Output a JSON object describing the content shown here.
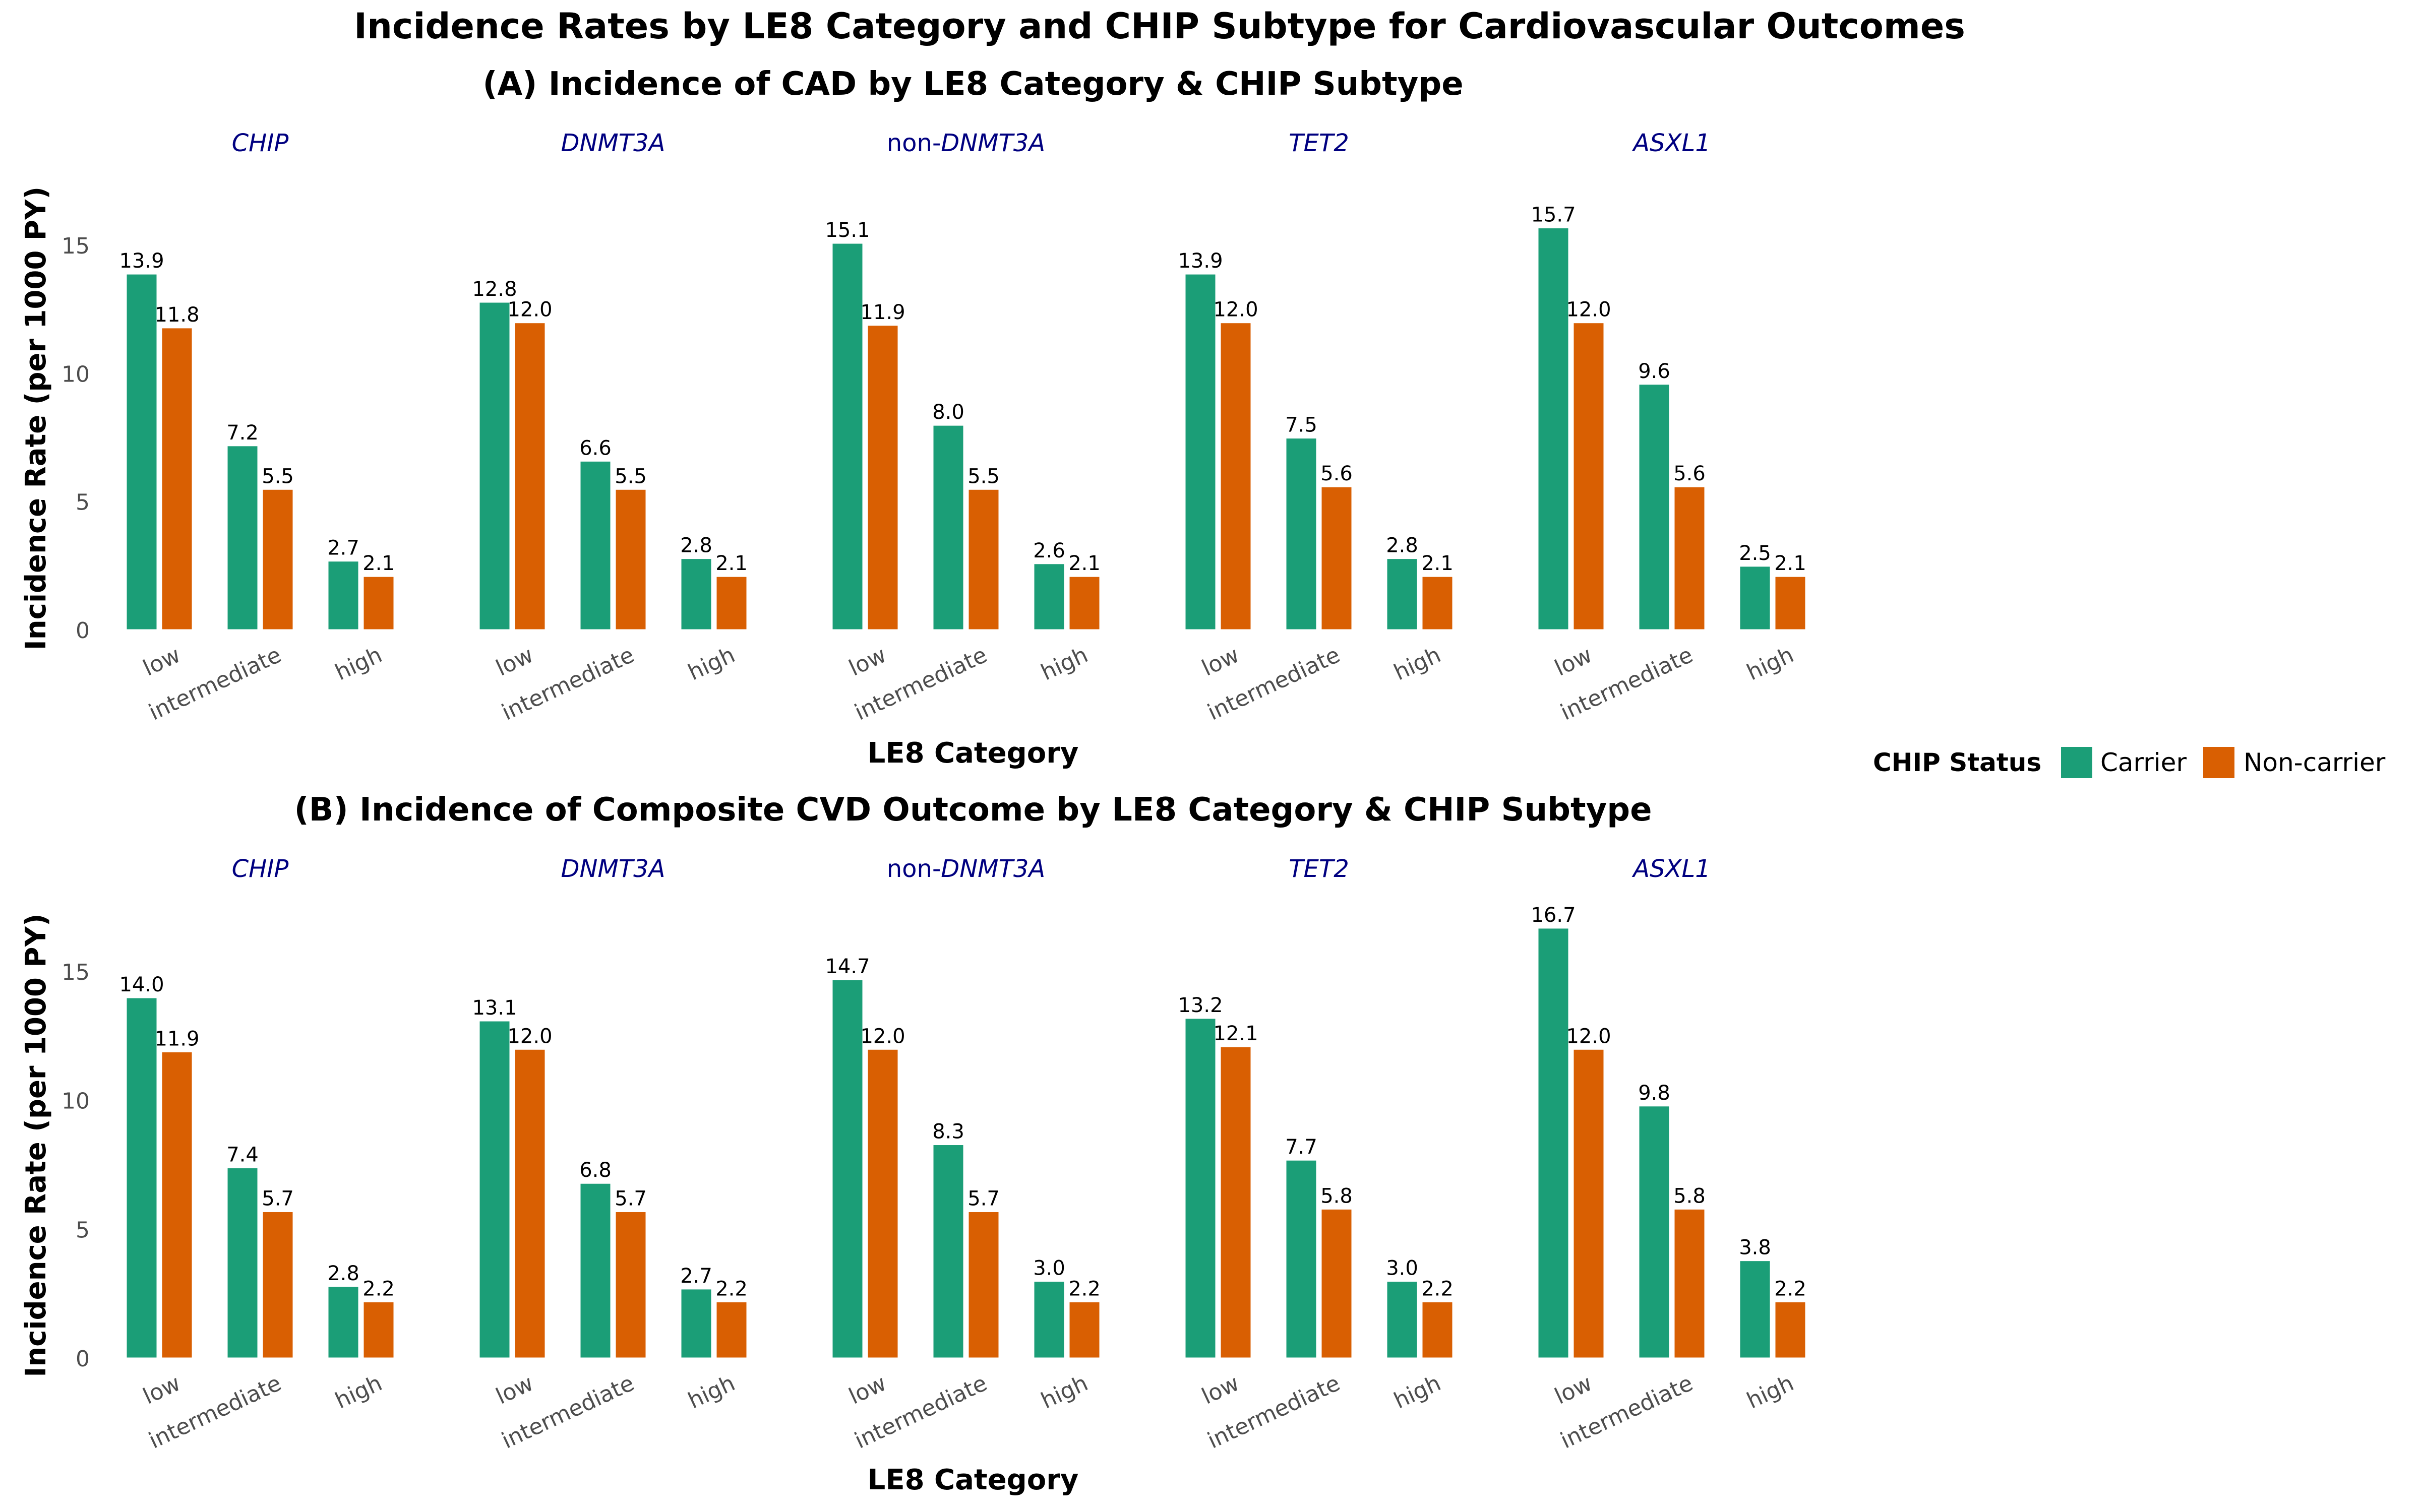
{
  "figure": {
    "title": "Incidence Rates by LE8 Category and CHIP Subtype for Cardiovascular Outcomes"
  },
  "legend": {
    "title": "CHIP Status",
    "placement": "right",
    "items": [
      {
        "label": "Carrier",
        "color": "#1b9e77"
      },
      {
        "label": "Non-carrier",
        "color": "#d95f02"
      }
    ]
  },
  "chart_data": [
    {
      "type": "bar",
      "title": "(A) Incidence of CAD by LE8 Category & CHIP Subtype",
      "xlabel": "LE8 Category",
      "ylabel": "Incidence Rate (per 1000 PY)",
      "ylim": [
        0,
        17.5
      ],
      "yticks": [
        0,
        5,
        10,
        15
      ],
      "grid": false,
      "categories": [
        "low",
        "intermediate",
        "high"
      ],
      "facets": [
        {
          "label": "CHIP",
          "series": [
            {
              "name": "Carrier",
              "values": [
                13.9,
                7.2,
                2.7
              ]
            },
            {
              "name": "Non-carrier",
              "values": [
                11.8,
                5.5,
                2.1
              ]
            }
          ]
        },
        {
          "label": "DNMT3A",
          "series": [
            {
              "name": "Carrier",
              "values": [
                12.8,
                6.6,
                2.8
              ]
            },
            {
              "name": "Non-carrier",
              "values": [
                12.0,
                5.5,
                2.1
              ]
            }
          ]
        },
        {
          "label": "non-DNMT3A",
          "label_plain": "non-",
          "label_italic": "DNMT3A",
          "series": [
            {
              "name": "Carrier",
              "values": [
                15.1,
                8.0,
                2.6
              ]
            },
            {
              "name": "Non-carrier",
              "values": [
                11.9,
                5.5,
                2.1
              ]
            }
          ]
        },
        {
          "label": "TET2",
          "series": [
            {
              "name": "Carrier",
              "values": [
                13.9,
                7.5,
                2.8
              ]
            },
            {
              "name": "Non-carrier",
              "values": [
                12.0,
                5.6,
                2.1
              ]
            }
          ]
        },
        {
          "label": "ASXL1",
          "series": [
            {
              "name": "Carrier",
              "values": [
                15.7,
                9.6,
                2.5
              ]
            },
            {
              "name": "Non-carrier",
              "values": [
                12.0,
                5.6,
                2.1
              ]
            }
          ]
        }
      ]
    },
    {
      "type": "bar",
      "title": "(B) Incidence of Composite CVD Outcome by LE8 Category & CHIP Subtype",
      "xlabel": "LE8 Category",
      "ylabel": "Incidence Rate (per 1000 PY)",
      "ylim": [
        0,
        17.5
      ],
      "yticks": [
        0,
        5,
        10,
        15
      ],
      "grid": false,
      "categories": [
        "low",
        "intermediate",
        "high"
      ],
      "facets": [
        {
          "label": "CHIP",
          "series": [
            {
              "name": "Carrier",
              "values": [
                14.0,
                7.4,
                2.8
              ]
            },
            {
              "name": "Non-carrier",
              "values": [
                11.9,
                5.7,
                2.2
              ]
            }
          ]
        },
        {
          "label": "DNMT3A",
          "series": [
            {
              "name": "Carrier",
              "values": [
                13.1,
                6.8,
                2.7
              ]
            },
            {
              "name": "Non-carrier",
              "values": [
                12.0,
                5.7,
                2.2
              ]
            }
          ]
        },
        {
          "label": "non-DNMT3A",
          "label_plain": "non-",
          "label_italic": "DNMT3A",
          "series": [
            {
              "name": "Carrier",
              "values": [
                14.7,
                8.3,
                3.0
              ]
            },
            {
              "name": "Non-carrier",
              "values": [
                12.0,
                5.7,
                2.2
              ]
            }
          ]
        },
        {
          "label": "TET2",
          "series": [
            {
              "name": "Carrier",
              "values": [
                13.2,
                7.7,
                3.0
              ]
            },
            {
              "name": "Non-carrier",
              "values": [
                12.1,
                5.8,
                2.2
              ]
            }
          ]
        },
        {
          "label": "ASXL1",
          "series": [
            {
              "name": "Carrier",
              "values": [
                16.7,
                9.8,
                3.8
              ]
            },
            {
              "name": "Non-carrier",
              "values": [
                12.0,
                5.8,
                2.2
              ]
            }
          ]
        }
      ]
    }
  ]
}
